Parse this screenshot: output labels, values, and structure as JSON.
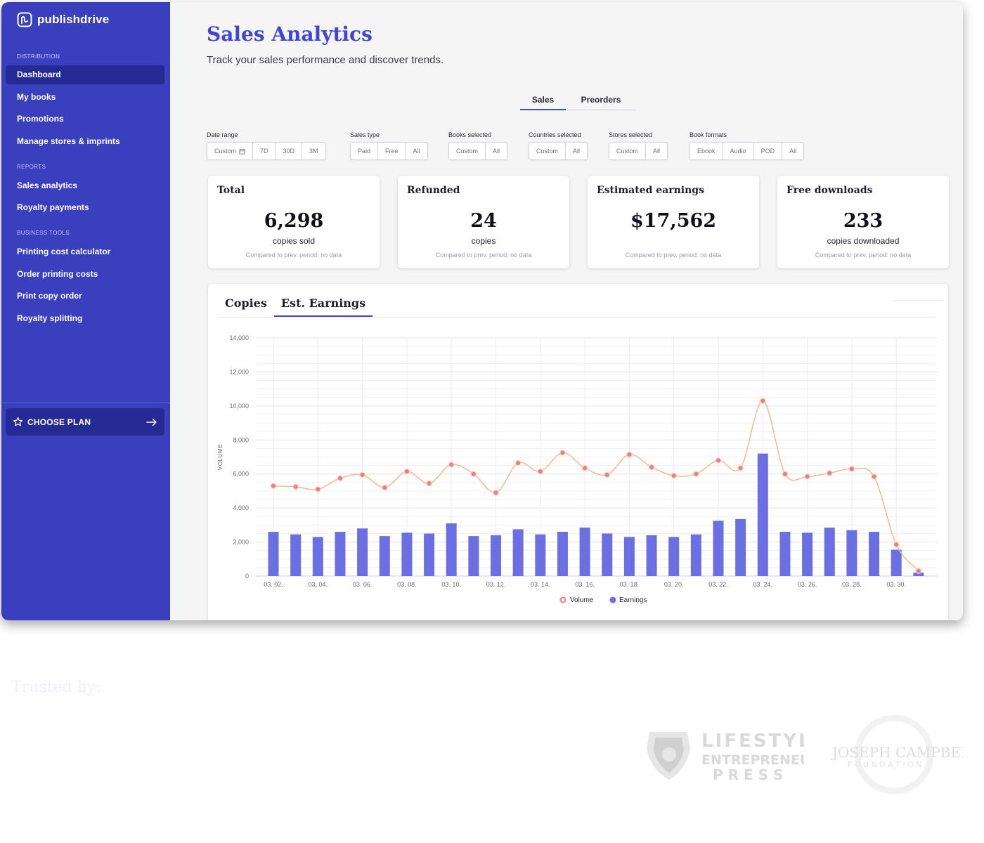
{
  "brand": {
    "name": "publishdrive"
  },
  "sidebar": {
    "sections": [
      {
        "label": "DISTRIBUTION"
      },
      {
        "label": "REPORTS"
      },
      {
        "label": "BUSINESS TOOLS"
      }
    ],
    "items": [
      {
        "label": "Dashboard",
        "active": true
      },
      {
        "label": "My books"
      },
      {
        "label": "Promotions"
      },
      {
        "label": "Manage stores & imprints"
      },
      {
        "label": "Sales analytics"
      },
      {
        "label": "Royalty payments"
      },
      {
        "label": "Printing cost calculator"
      },
      {
        "label": "Order printing costs"
      },
      {
        "label": "Print copy order"
      },
      {
        "label": "Royalty splitting"
      }
    ],
    "choose_plan": "CHOOSE PLAN"
  },
  "header": {
    "title": "Sales Analytics",
    "subtitle": "Track your sales performance and discover trends."
  },
  "top_tabs": [
    {
      "label": "Sales",
      "active": true
    },
    {
      "label": "Preorders"
    }
  ],
  "filters": [
    {
      "label": "Date range",
      "options": [
        "Custom",
        "7D",
        "30D",
        "3M"
      ]
    },
    {
      "label": "Sales type",
      "options": [
        "Paid",
        "Free",
        "All"
      ]
    },
    {
      "label": "Books selected",
      "options": [
        "Custom",
        "All"
      ]
    },
    {
      "label": "Countries selected",
      "options": [
        "Custom",
        "All"
      ]
    },
    {
      "label": "Stores selected",
      "options": [
        "Custom",
        "All"
      ]
    },
    {
      "label": "Book formats",
      "options": [
        "Ebook",
        "Audio",
        "POD",
        "All"
      ]
    }
  ],
  "cards": [
    {
      "title": "Total",
      "value": "6,298",
      "unit": "copies sold",
      "compare": "Compared to prev. period: no data"
    },
    {
      "title": "Refunded",
      "value": "24",
      "unit": "copies",
      "compare": "Compared to prev. period: no data"
    },
    {
      "title": "Estimated earnings",
      "value": "$17,562",
      "unit": "",
      "compare": "Compared to prev. period: no data"
    },
    {
      "title": "Free downloads",
      "value": "233",
      "unit": "copies downloaded",
      "compare": "Compared to prev. period: no data"
    }
  ],
  "chart_tabs": [
    {
      "label": "Copies"
    },
    {
      "label": "Est. Earnings",
      "active": true
    }
  ],
  "chart_data": {
    "type": "bar",
    "x": [
      "03. 02.",
      "03. 03.",
      "03. 04.",
      "03. 05.",
      "03. 06.",
      "03. 07.",
      "03. 08.",
      "03. 09.",
      "03. 10.",
      "03. 11.",
      "03. 12.",
      "03. 13.",
      "03. 14.",
      "03. 15.",
      "03. 16.",
      "03. 17.",
      "03. 18.",
      "03. 19.",
      "03. 20.",
      "03. 21.",
      "03. 22.",
      "03. 23.",
      "03. 24.",
      "03. 25.",
      "03. 26.",
      "03. 27.",
      "03. 28.",
      "03. 29.",
      "03. 30.",
      "03. 31."
    ],
    "x_tick_labels": [
      "03. 02.",
      "03. 04.",
      "03. 06.",
      "03. 08.",
      "03. 10.",
      "03. 12.",
      "03. 14.",
      "03. 16.",
      "03. 18.",
      "03. 20.",
      "03. 22.",
      "03. 24.",
      "03. 26.",
      "03. 28.",
      "03. 30."
    ],
    "series": [
      {
        "name": "Earnings",
        "type": "bar",
        "color": "#6c6fe4",
        "values": [
          2600,
          2450,
          2300,
          2600,
          2800,
          2350,
          2550,
          2500,
          3100,
          2350,
          2400,
          2750,
          2450,
          2600,
          2850,
          2500,
          2300,
          2400,
          2300,
          2450,
          3250,
          3350,
          7200,
          2600,
          2550,
          2850,
          2700,
          2600,
          1550,
          200
        ]
      },
      {
        "name": "Volume",
        "type": "line",
        "color": "#f07b7b",
        "line_color": "#f8b98a",
        "values": [
          5300,
          5250,
          5100,
          5750,
          5950,
          5200,
          6150,
          5450,
          6550,
          6000,
          4900,
          6650,
          6150,
          7250,
          6350,
          5950,
          7150,
          6400,
          5900,
          6000,
          6800,
          6350,
          10300,
          6000,
          5850,
          6050,
          6300,
          5850,
          1850,
          300
        ]
      }
    ],
    "ylabel": "VOLUME",
    "ylim": [
      0,
      14000
    ],
    "y_ticks": [
      "0",
      "2,000",
      "4,000",
      "6,000",
      "8,000",
      "10,000",
      "12,000",
      "14,000"
    ],
    "grid": true,
    "legend_position": "bottom-center"
  },
  "trusted_by": {
    "label": "Trusted by:"
  },
  "partners": [
    {
      "lines": [
        "LIFESTYLE",
        "ENTREPRENEURS",
        "P R E S S"
      ]
    },
    {
      "lines": [
        "JOSEPH CAMPBELL",
        "F O U N D A T I O N"
      ]
    }
  ]
}
